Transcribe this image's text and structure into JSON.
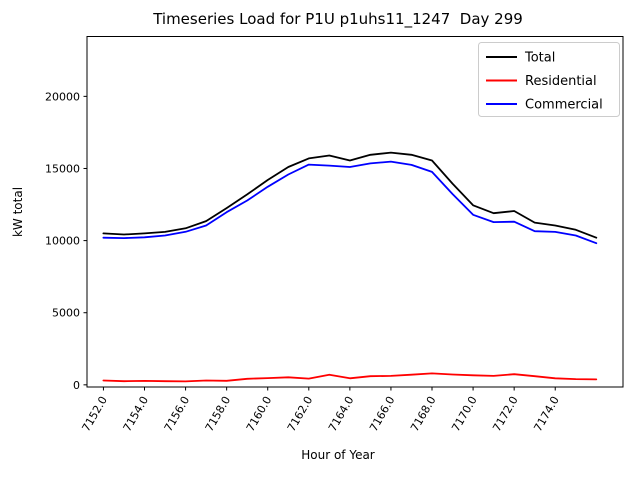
{
  "chart_data": {
    "type": "line",
    "title": "Timeseries Load for P1U p1uhs11_1247  Day 299",
    "xlabel": "Hour of Year",
    "ylabel": "kW total",
    "x": [
      7152,
      7153,
      7154,
      7155,
      7156,
      7157,
      7158,
      7159,
      7160,
      7161,
      7162,
      7163,
      7164,
      7165,
      7166,
      7167,
      7168,
      7169,
      7170,
      7171,
      7172,
      7173,
      7174,
      7175,
      7176
    ],
    "series": [
      {
        "name": "Total",
        "color": "#000000",
        "values": [
          10500,
          10420,
          10500,
          10600,
          10850,
          11350,
          12250,
          13200,
          14200,
          15100,
          15700,
          15900,
          15550,
          15950,
          16100,
          15950,
          15550,
          13950,
          12450,
          11900,
          12050,
          11250,
          11050,
          10750,
          10200
        ]
      },
      {
        "name": "Residential",
        "color": "#ff0000",
        "values": [
          300,
          250,
          270,
          250,
          240,
          300,
          280,
          420,
          470,
          520,
          430,
          700,
          450,
          600,
          620,
          700,
          790,
          720,
          660,
          620,
          740,
          600,
          450,
          400,
          380
        ]
      },
      {
        "name": "Commercial",
        "color": "#0000ff",
        "values": [
          10200,
          10170,
          10230,
          10350,
          10610,
          11050,
          11970,
          12780,
          13730,
          14580,
          15270,
          15200,
          15100,
          15350,
          15480,
          15250,
          14760,
          13230,
          11790,
          11280,
          11310,
          10650,
          10600,
          10350,
          9820
        ]
      }
    ],
    "xticks": [
      7152,
      7154,
      7156,
      7158,
      7160,
      7162,
      7164,
      7166,
      7168,
      7170,
      7172,
      7174
    ],
    "xtick_labels": [
      "7152.0",
      "7154.0",
      "7156.0",
      "7158.0",
      "7160.0",
      "7162.0",
      "7164.0",
      "7166.0",
      "7168.0",
      "7170.0",
      "7172.0",
      "7174.0"
    ],
    "yticks": [
      0,
      5000,
      10000,
      15000,
      20000
    ],
    "ytick_labels": [
      "0",
      "5000",
      "10000",
      "15000",
      "20000"
    ],
    "xlim": [
      7151.2,
      7177.3
    ],
    "ylim": [
      -150,
      24150
    ],
    "grid": false,
    "tick_rotation": 60,
    "legend_position": "upper right"
  },
  "legend": {
    "entries": [
      {
        "label": "Total",
        "color": "#000000"
      },
      {
        "label": "Residential",
        "color": "#ff0000"
      },
      {
        "label": "Commercial",
        "color": "#0000ff"
      }
    ]
  }
}
